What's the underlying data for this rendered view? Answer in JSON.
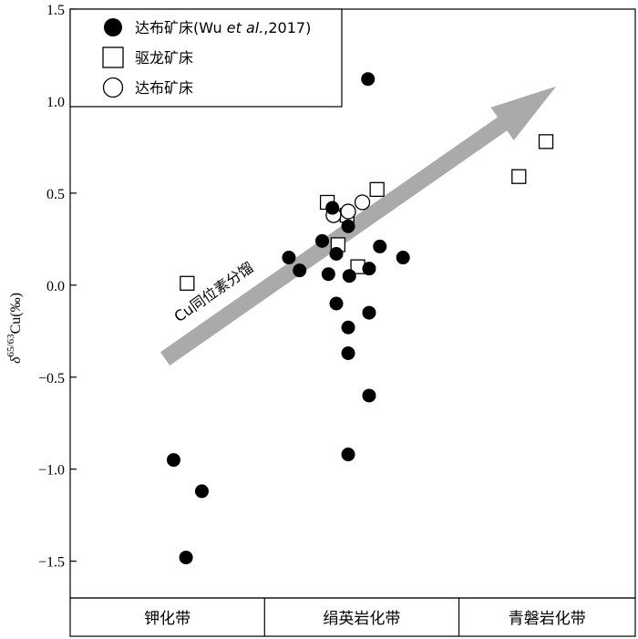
{
  "chart_data": {
    "type": "scatter",
    "ylabel_parts": {
      "delta": "δ",
      "sup": "65/63",
      "rest": "Cu(‰)"
    },
    "ylim": [
      -1.7,
      1.5
    ],
    "yticks": [
      1.5,
      1.0,
      0.5,
      0.0,
      -0.5,
      -1.0,
      -1.5
    ],
    "ytick_labels": [
      "1.5",
      "1.0",
      "0.5",
      "0.0",
      "−0.5",
      "−1.0",
      "−1.5"
    ],
    "xlim": [
      0,
      100
    ],
    "zones": [
      {
        "label": "钾化带",
        "start": 0,
        "end": 34.4
      },
      {
        "label": "绢英岩化带",
        "start": 34.4,
        "end": 68.8
      },
      {
        "label": "青磐岩化带",
        "start": 68.8,
        "end": 100
      }
    ],
    "legend": {
      "position": "top-left",
      "entries": [
        {
          "marker": "filled-circle",
          "label_plain": "达布矿床(Wu ",
          "label_italic": "et al.",
          "label_tail": ",2017)"
        },
        {
          "marker": "open-square",
          "label_plain": "驱龙矿床"
        },
        {
          "marker": "open-circle",
          "label_plain": "达布矿床"
        }
      ]
    },
    "arrow_label": "Cu同位素分馏",
    "arrow_from": {
      "x": 16.8,
      "y": -0.4
    },
    "arrow_to": {
      "x": 86.0,
      "y": 1.08
    },
    "series": [
      {
        "marker": "filled-circle",
        "points": [
          {
            "x": 52.7,
            "y": 1.12
          },
          {
            "x": 46.4,
            "y": 0.42
          },
          {
            "x": 49.2,
            "y": 0.32
          },
          {
            "x": 44.6,
            "y": 0.24
          },
          {
            "x": 38.7,
            "y": 0.15
          },
          {
            "x": 40.6,
            "y": 0.08
          },
          {
            "x": 47.1,
            "y": 0.17
          },
          {
            "x": 54.8,
            "y": 0.21
          },
          {
            "x": 58.9,
            "y": 0.15
          },
          {
            "x": 45.7,
            "y": 0.06
          },
          {
            "x": 49.4,
            "y": 0.05
          },
          {
            "x": 52.9,
            "y": 0.09
          },
          {
            "x": 47.1,
            "y": -0.1
          },
          {
            "x": 52.9,
            "y": -0.15
          },
          {
            "x": 49.2,
            "y": -0.23
          },
          {
            "x": 49.2,
            "y": -0.37
          },
          {
            "x": 52.9,
            "y": -0.6
          },
          {
            "x": 49.2,
            "y": -0.92
          },
          {
            "x": 18.3,
            "y": -0.95
          },
          {
            "x": 23.3,
            "y": -1.12
          },
          {
            "x": 20.5,
            "y": -1.48
          }
        ]
      },
      {
        "marker": "open-square",
        "points": [
          {
            "x": 20.7,
            "y": 0.01
          },
          {
            "x": 45.5,
            "y": 0.45
          },
          {
            "x": 49.0,
            "y": 0.38
          },
          {
            "x": 54.3,
            "y": 0.52
          },
          {
            "x": 47.4,
            "y": 0.22
          },
          {
            "x": 50.9,
            "y": 0.1
          },
          {
            "x": 79.4,
            "y": 0.59
          },
          {
            "x": 84.2,
            "y": 0.78
          }
        ]
      },
      {
        "marker": "open-circle",
        "points": [
          {
            "x": 46.6,
            "y": 0.38
          },
          {
            "x": 49.2,
            "y": 0.4
          },
          {
            "x": 51.7,
            "y": 0.45
          }
        ]
      }
    ]
  }
}
